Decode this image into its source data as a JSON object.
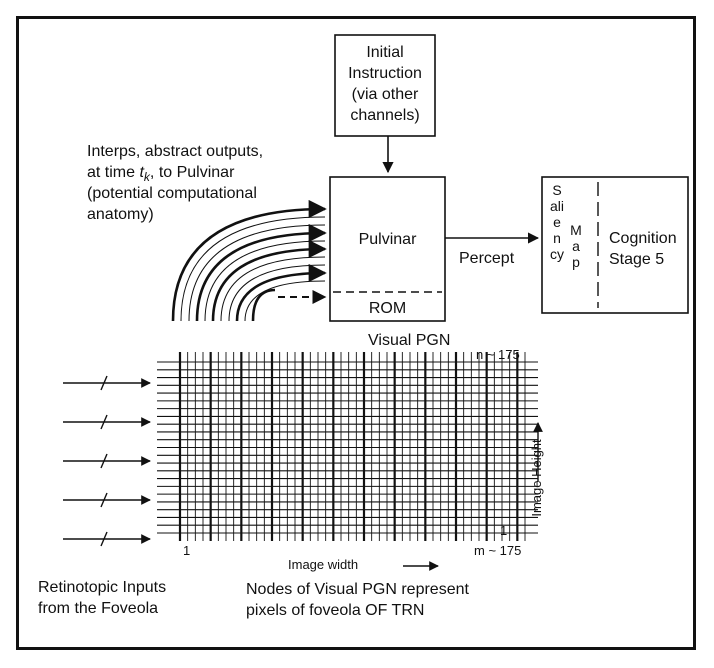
{
  "instruction_box": {
    "lines": [
      "Initial",
      "Instruction",
      "(via other",
      "channels)"
    ]
  },
  "interps_text": {
    "line1": "Interps, abstract outputs,",
    "line2_pre": "at time ",
    "line2_var": "t",
    "line2_sub": "k",
    "line2_post": ", to Pulvinar",
    "line3": "(potential computational",
    "line4": "anatomy)"
  },
  "pulvinar_box": {
    "label": "Pulvinar",
    "rom_label": "ROM"
  },
  "percept_label": "Percept",
  "cognition_box": {
    "saliency_letters": "Saliency",
    "map_letters": "Map",
    "cognition_lines": [
      "Cognition",
      "Stage 5"
    ]
  },
  "pgn_grid": {
    "title": "Visual PGN",
    "top_row_label": "n ~ 175",
    "bottom_row_label": "1",
    "left_col_label": "1",
    "right_col_label": "m ~ 175",
    "x_axis_label": "Image width",
    "y_axis_label": "Image Height"
  },
  "retinotopic_caption": [
    "Retinotopic Inputs",
    "from the Foveola"
  ],
  "nodes_caption": [
    "Nodes of Visual PGN represent",
    "pixels of foveola OF TRN"
  ],
  "colors": {
    "line": "#111111",
    "background": "#ffffff"
  }
}
